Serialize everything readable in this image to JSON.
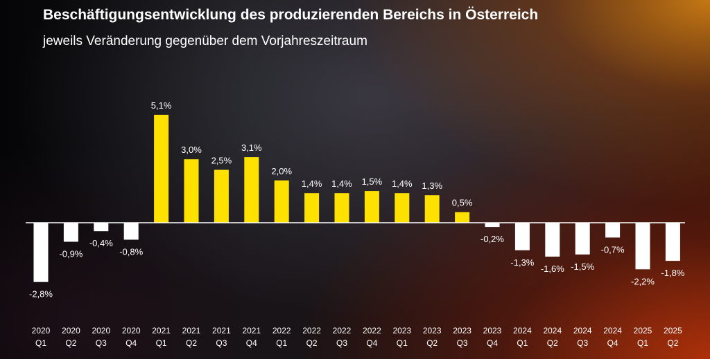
{
  "header": {
    "title": "Beschäftigungsentwicklung des produzierenden Bereichs in Österreich",
    "subtitle": "jeweils Veränderung gegenüber dem Vorjahreszeitraum"
  },
  "colors": {
    "positive_bar": "#FFE100",
    "negative_bar": "#FFFFFF",
    "text": "#FFFFFF",
    "zero_line": "#FFFFFF"
  },
  "chart_data": {
    "type": "bar",
    "title": "Beschäftigungsentwicklung des produzierenden Bereichs in Österreich",
    "subtitle": "jeweils Veränderung gegenüber dem Vorjahreszeitraum",
    "xlabel": "",
    "ylabel": "",
    "ylim": [
      -3.0,
      5.5
    ],
    "grid": false,
    "legend": "none",
    "categories": [
      {
        "year": "2020",
        "quarter": "Q1"
      },
      {
        "year": "2020",
        "quarter": "Q2"
      },
      {
        "year": "2020",
        "quarter": "Q3"
      },
      {
        "year": "2020",
        "quarter": "Q4"
      },
      {
        "year": "2021",
        "quarter": "Q1"
      },
      {
        "year": "2021",
        "quarter": "Q2"
      },
      {
        "year": "2021",
        "quarter": "Q3"
      },
      {
        "year": "2021",
        "quarter": "Q4"
      },
      {
        "year": "2022",
        "quarter": "Q1"
      },
      {
        "year": "2022",
        "quarter": "Q2"
      },
      {
        "year": "2022",
        "quarter": "Q3"
      },
      {
        "year": "2022",
        "quarter": "Q4"
      },
      {
        "year": "2023",
        "quarter": "Q1"
      },
      {
        "year": "2023",
        "quarter": "Q2"
      },
      {
        "year": "2023",
        "quarter": "Q3"
      },
      {
        "year": "2023",
        "quarter": "Q4"
      },
      {
        "year": "2024",
        "quarter": "Q1"
      },
      {
        "year": "2024",
        "quarter": "Q2"
      },
      {
        "year": "2024",
        "quarter": "Q3"
      },
      {
        "year": "2024",
        "quarter": "Q4"
      },
      {
        "year": "2025",
        "quarter": "Q1"
      },
      {
        "year": "2025",
        "quarter": "Q2"
      }
    ],
    "values": [
      -2.8,
      -0.9,
      -0.4,
      -0.8,
      5.1,
      3.0,
      2.5,
      3.1,
      2.0,
      1.4,
      1.4,
      1.5,
      1.4,
      1.3,
      0.5,
      -0.2,
      -1.3,
      -1.6,
      -1.5,
      -0.7,
      -2.2,
      -1.8
    ],
    "labels": [
      "-2,8%",
      "-0,9%",
      "-0,4%",
      "-0,8%",
      "5,1%",
      "3,0%",
      "2,5%",
      "3,1%",
      "2,0%",
      "1,4%",
      "1,4%",
      "1,5%",
      "1,4%",
      "1,3%",
      "0,5%",
      "-0,2%",
      "-1,3%",
      "-1,6%",
      "-1,5%",
      "-0,7%",
      "-2,2%",
      "-1,8%"
    ]
  }
}
